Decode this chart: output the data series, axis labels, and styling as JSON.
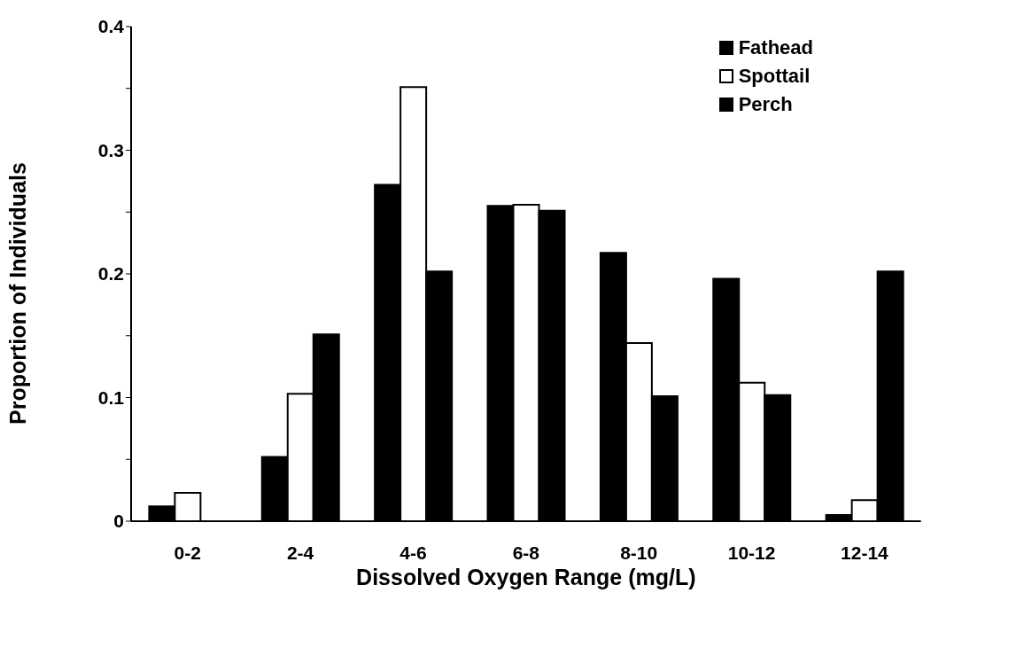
{
  "chart_data": {
    "type": "bar",
    "xlabel": "Dissolved Oxygen Range (mg/L)",
    "ylabel": "Proportion of Individuals",
    "categories": [
      "0-2",
      "2-4",
      "4-6",
      "6-8",
      "8-10",
      "10-12",
      "12-14"
    ],
    "series": [
      {
        "name": "Fathead",
        "color": "#000000",
        "values": [
          0.012,
          0.052,
          0.272,
          0.255,
          0.217,
          0.196,
          0.005
        ]
      },
      {
        "name": "Spottail",
        "color": "#ffffff",
        "values": [
          0.023,
          0.103,
          0.351,
          0.256,
          0.144,
          0.112,
          0.017
        ]
      },
      {
        "name": "Perch",
        "color": "#000000",
        "values": [
          0,
          0.151,
          0.202,
          0.251,
          0.101,
          0.102,
          0.202
        ]
      }
    ],
    "ylim": [
      0,
      0.4
    ],
    "yticks": [
      0,
      {
        "value": 0.05,
        "label": null
      },
      0.1,
      {
        "value": 0.15,
        "label": null
      },
      0.2,
      {
        "value": 0.25,
        "label": null
      },
      0.3,
      {
        "value": 0.35,
        "label": null
      },
      0.4
    ],
    "grid": false,
    "legend": "top right"
  }
}
